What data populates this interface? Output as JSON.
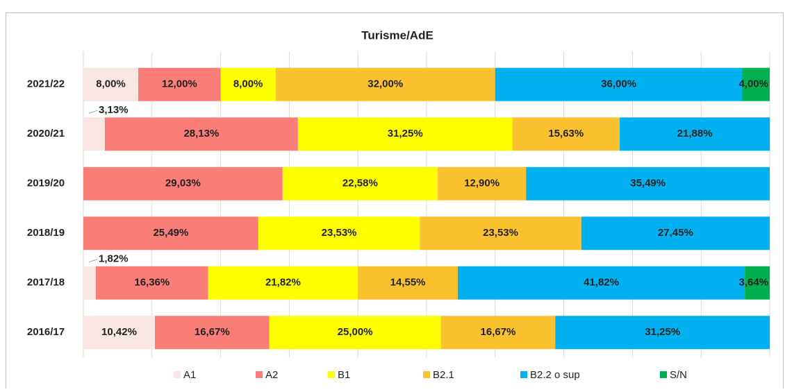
{
  "chart_data": {
    "type": "stacked_bar_horizontal",
    "title": "Turisme/AdE",
    "categories": [
      "2021/22",
      "2020/21",
      "2019/20",
      "2018/19",
      "2017/18",
      "2016/17"
    ],
    "xlim": [
      0,
      100
    ],
    "xticks": [
      0,
      10,
      20,
      30,
      40,
      50,
      60,
      70,
      80,
      90,
      100
    ],
    "grid": true,
    "legend": "bottom",
    "series": [
      {
        "name": "A1",
        "color": "#f9e7e4",
        "values": [
          8,
          3.13,
          null,
          null,
          1.82,
          10.42
        ],
        "value_labels": [
          "8,00%",
          "3,13%",
          null,
          null,
          "1,82%",
          "10,42%"
        ]
      },
      {
        "name": "A2",
        "color": "#fb7d77",
        "values": [
          12,
          28.13,
          29.03,
          25.49,
          16.36,
          16.67
        ],
        "value_labels": [
          "12,00%",
          "28,13%",
          "29,03%",
          "25,49%",
          "16,36%",
          "16,67%"
        ]
      },
      {
        "name": "B1",
        "color": "#ffff00",
        "values": [
          8,
          31.25,
          22.58,
          23.53,
          21.82,
          25
        ],
        "value_labels": [
          "8,00%",
          "31,25%",
          "22,58%",
          "23,53%",
          "21,82%",
          "25,00%"
        ]
      },
      {
        "name": "B2.1",
        "color": "#fbc12e",
        "values": [
          32,
          15.63,
          12.9,
          23.53,
          14.55,
          16.67
        ],
        "value_labels": [
          "32,00%",
          "15,63%",
          "12,90%",
          "23,53%",
          "14,55%",
          "16,67%"
        ]
      },
      {
        "name": "B2.2 o sup",
        "color": "#00b0f0",
        "values": [
          36,
          21.88,
          35.49,
          27.45,
          41.82,
          31.25
        ],
        "value_labels": [
          "36,00%",
          "21,88%",
          "35,49%",
          "27,45%",
          "41,82%",
          "31,25%"
        ]
      },
      {
        "name": "S/N",
        "color": "#00b050",
        "values": [
          4,
          null,
          null,
          null,
          3.64,
          null
        ],
        "value_labels": [
          "4,00%",
          null,
          null,
          null,
          "3,64%",
          null
        ]
      }
    ]
  }
}
